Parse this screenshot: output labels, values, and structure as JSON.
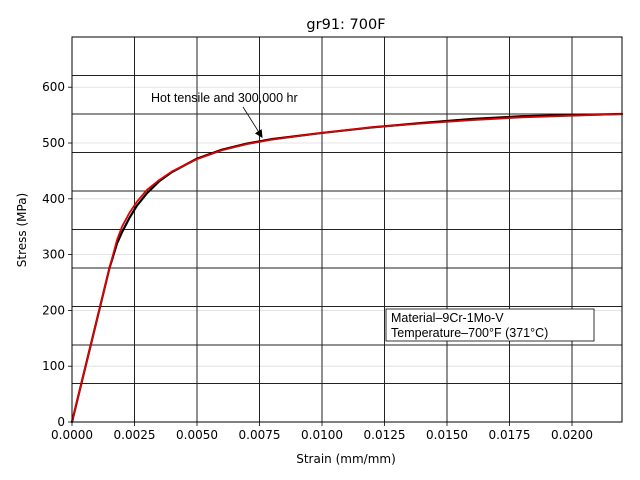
{
  "chart_data": {
    "type": "line",
    "title": "gr91: 700F",
    "xlabel": "Strain (mm/mm)",
    "ylabel": "Stress (MPa)",
    "xlim": [
      0,
      0.022
    ],
    "ylim": [
      0,
      690
    ],
    "x_ticks": [
      0.0,
      0.0025,
      0.005,
      0.0075,
      0.01,
      0.0125,
      0.015,
      0.0175,
      0.02
    ],
    "x_tick_labels": [
      "0.0000",
      "0.0025",
      "0.0050",
      "0.0075",
      "0.0100",
      "0.0125",
      "0.0150",
      "0.0175",
      "0.0200"
    ],
    "y_ticks": [
      0,
      100,
      200,
      300,
      400,
      500,
      600
    ],
    "y_tick_labels": [
      "0",
      "100",
      "200",
      "300",
      "400",
      "500",
      "600"
    ],
    "grid": "on",
    "background_h_lines": [
      69,
      138,
      207,
      276,
      345,
      414,
      483,
      552,
      621
    ],
    "background_v_lines": [
      0.0025,
      0.005,
      0.0075,
      0.01,
      0.0125,
      0.015,
      0.0175,
      0.02
    ],
    "series": [
      {
        "color": "#000000",
        "x": [
          0.0,
          0.0005,
          0.001,
          0.0015,
          0.0018,
          0.002,
          0.0023,
          0.0026,
          0.003,
          0.0035,
          0.004,
          0.005,
          0.006,
          0.007,
          0.008,
          0.01,
          0.012,
          0.014,
          0.016,
          0.018,
          0.02,
          0.022
        ],
        "y": [
          0,
          92,
          184,
          276,
          320,
          340,
          366,
          388,
          410,
          432,
          448,
          472,
          488,
          499,
          507,
          518,
          528,
          536,
          543,
          548,
          550,
          552
        ]
      },
      {
        "color": "#e00000",
        "x": [
          0.0,
          0.0005,
          0.001,
          0.0015,
          0.0018,
          0.002,
          0.0023,
          0.0026,
          0.003,
          0.0035,
          0.004,
          0.005,
          0.006,
          0.007,
          0.008,
          0.01,
          0.012,
          0.014,
          0.016,
          0.018,
          0.02,
          0.022
        ],
        "y": [
          0,
          92,
          184,
          276,
          326,
          350,
          375,
          395,
          416,
          434,
          449,
          471,
          487,
          498,
          506,
          518,
          528,
          535,
          541,
          546,
          549,
          552
        ]
      }
    ],
    "annotations": [
      {
        "text": "Hot tensile and 300,000 hr",
        "arrow_to": [
          0.0076,
          507
        ]
      }
    ],
    "info_box": {
      "lines": [
        "Material–9Cr-1Mo-V",
        "Temperature–700°F (371°C)"
      ]
    }
  }
}
